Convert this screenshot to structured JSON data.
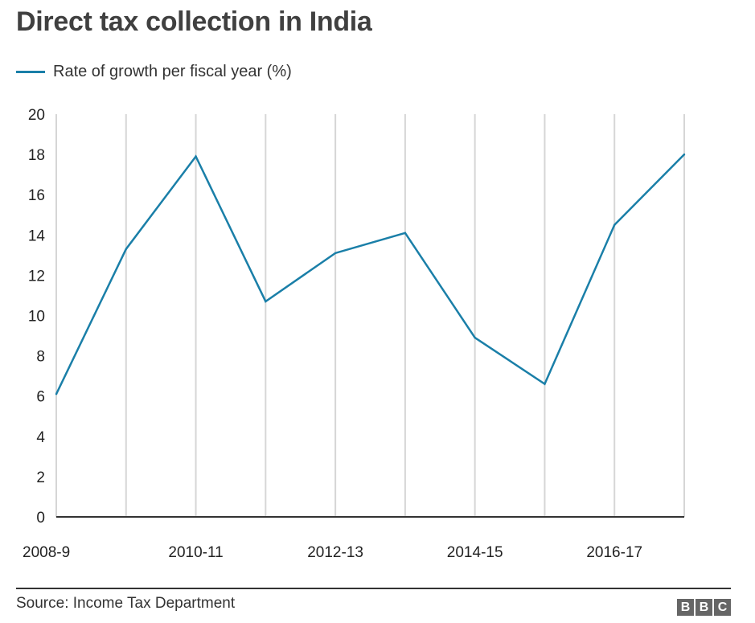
{
  "title": "Direct tax collection in India",
  "source": "Source: Income Tax Department",
  "logo": [
    "B",
    "B",
    "C"
  ],
  "chart_data": {
    "type": "line",
    "title": "Direct tax collection in India",
    "x": [
      "2008-9",
      "2009-10",
      "2010-11",
      "2011-12",
      "2012-13",
      "2013-14",
      "2014-15",
      "2015-16",
      "2016-17",
      "2017-18"
    ],
    "x_tick_labels": [
      "2008-9",
      "2010-11",
      "2012-13",
      "2014-15",
      "2016-17"
    ],
    "series": [
      {
        "name": "Rate of growth per fiscal year (%)",
        "color": "#1a7fa8",
        "values": [
          6.1,
          13.3,
          17.9,
          10.7,
          13.1,
          14.1,
          8.9,
          6.6,
          14.5,
          18.0
        ]
      }
    ],
    "ylim": [
      0,
      20
    ],
    "yticks": [
      0,
      2,
      4,
      6,
      8,
      10,
      12,
      14,
      16,
      18,
      20
    ],
    "grid": "vertical",
    "legend_position": "top-left",
    "xlabel": "",
    "ylabel": ""
  }
}
